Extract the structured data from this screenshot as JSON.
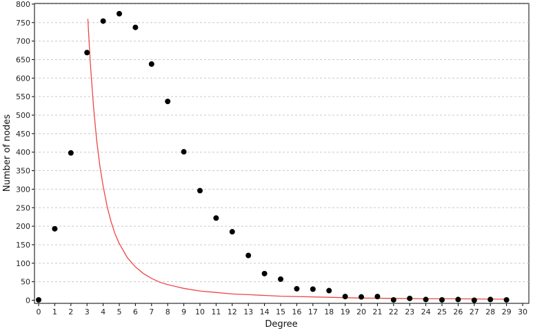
{
  "chart_data": {
    "type": "scatter",
    "title": "",
    "xlabel": "Degree",
    "ylabel": "Number of nodes",
    "xlim": [
      0,
      30
    ],
    "ylim": [
      0,
      800
    ],
    "xticks": [
      0,
      1,
      2,
      3,
      4,
      5,
      6,
      7,
      8,
      9,
      10,
      11,
      12,
      13,
      14,
      15,
      16,
      17,
      18,
      19,
      20,
      21,
      22,
      23,
      24,
      25,
      26,
      27,
      28,
      29,
      30
    ],
    "yticks": [
      0,
      50,
      100,
      150,
      200,
      250,
      300,
      350,
      400,
      450,
      500,
      550,
      600,
      650,
      700,
      750,
      800
    ],
    "grid": "horizontal dashed",
    "series": [
      {
        "kind": "points",
        "color": "#000000",
        "x": [
          0,
          1,
          2,
          3,
          4,
          5,
          6,
          7,
          8,
          9,
          10,
          11,
          12,
          13,
          14,
          15,
          16,
          17,
          18,
          19,
          20,
          21,
          22,
          23,
          24,
          25,
          26,
          27,
          28,
          29
        ],
        "y": [
          1,
          193,
          398,
          669,
          754,
          774,
          737,
          638,
          537,
          401,
          296,
          222,
          185,
          121,
          72,
          57,
          31,
          30,
          26,
          10,
          9,
          10,
          1,
          5,
          2,
          1,
          2,
          0,
          2,
          1
        ]
      },
      {
        "kind": "fit-curve",
        "color": "#ee4444",
        "x": [
          3.05,
          3.2,
          3.4,
          3.6,
          3.8,
          4,
          4.25,
          4.5,
          4.75,
          5,
          5.5,
          6,
          6.5,
          7,
          7.5,
          8,
          9,
          10,
          11,
          12,
          13,
          14,
          15,
          16,
          18,
          20,
          22,
          24,
          26,
          28,
          29
        ],
        "y": [
          760,
          643,
          523,
          432,
          362,
          308,
          253,
          211,
          178,
          153,
          115,
          90,
          72,
          59,
          49,
          42,
          32,
          25,
          21,
          17,
          15,
          13,
          11,
          10,
          8,
          6,
          5,
          4,
          4,
          3,
          3
        ]
      }
    ]
  }
}
